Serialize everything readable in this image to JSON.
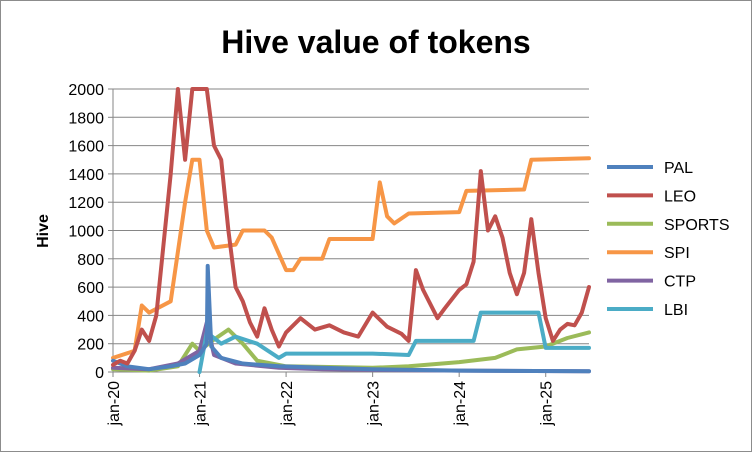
{
  "chart_data": {
    "type": "line",
    "title": "Hive value of tokens",
    "ylabel": "Hive",
    "xlabel": "",
    "ylim": [
      0,
      2000
    ],
    "yticks": [
      0,
      200,
      400,
      600,
      800,
      1000,
      1200,
      1400,
      1600,
      1800,
      2000
    ],
    "xlim": [
      "2020-01",
      "2025-07"
    ],
    "xticks": [
      {
        "date": "2020-01",
        "label": "jan-20"
      },
      {
        "date": "2021-01",
        "label": "jan-21"
      },
      {
        "date": "2022-01",
        "label": "jan-22"
      },
      {
        "date": "2023-01",
        "label": "jan-23"
      },
      {
        "date": "2024-01",
        "label": "jan-24"
      },
      {
        "date": "2025-01",
        "label": "jan-25"
      }
    ],
    "grid": "horizontal",
    "legend": "right",
    "series": [
      {
        "name": "PAL",
        "color": "#4f81bd",
        "points": [
          [
            "2020-01",
            80
          ],
          [
            "2020-03",
            40
          ],
          [
            "2020-06",
            20
          ],
          [
            "2020-09",
            40
          ],
          [
            "2020-11",
            60
          ],
          [
            "2021-01",
            120
          ],
          [
            "2021-02",
            200
          ],
          [
            "2021-02-05",
            750
          ],
          [
            "2021-02-20",
            180
          ],
          [
            "2021-04",
            100
          ],
          [
            "2021-07",
            60
          ],
          [
            "2021-12",
            40
          ],
          [
            "2022-06",
            30
          ],
          [
            "2023-01",
            20
          ],
          [
            "2024-01",
            10
          ],
          [
            "2025-07",
            5
          ]
        ]
      },
      {
        "name": "LEO",
        "color": "#c0504d",
        "points": [
          [
            "2020-01",
            50
          ],
          [
            "2020-02",
            80
          ],
          [
            "2020-03",
            60
          ],
          [
            "2020-04",
            150
          ],
          [
            "2020-05",
            300
          ],
          [
            "2020-06",
            220
          ],
          [
            "2020-07",
            400
          ],
          [
            "2020-08",
            900
          ],
          [
            "2020-09",
            1400
          ],
          [
            "2020-10",
            2000
          ],
          [
            "2020-11",
            1500
          ],
          [
            "2020-12",
            2000
          ],
          [
            "2021-01",
            2000
          ],
          [
            "2021-02",
            2000
          ],
          [
            "2021-03",
            1600
          ],
          [
            "2021-04",
            1500
          ],
          [
            "2021-05",
            1000
          ],
          [
            "2021-06",
            600
          ],
          [
            "2021-07",
            500
          ],
          [
            "2021-08",
            350
          ],
          [
            "2021-09",
            250
          ],
          [
            "2021-10",
            450
          ],
          [
            "2021-11",
            300
          ],
          [
            "2021-12",
            180
          ],
          [
            "2022-01",
            280
          ],
          [
            "2022-03",
            380
          ],
          [
            "2022-05",
            300
          ],
          [
            "2022-07",
            330
          ],
          [
            "2022-09",
            280
          ],
          [
            "2022-11",
            250
          ],
          [
            "2023-01",
            420
          ],
          [
            "2023-03",
            320
          ],
          [
            "2023-05",
            270
          ],
          [
            "2023-06",
            220
          ],
          [
            "2023-07",
            720
          ],
          [
            "2023-08",
            580
          ],
          [
            "2023-10",
            380
          ],
          [
            "2023-11",
            450
          ],
          [
            "2024-01",
            580
          ],
          [
            "2024-02",
            620
          ],
          [
            "2024-03",
            780
          ],
          [
            "2024-04",
            1420
          ],
          [
            "2024-05",
            1000
          ],
          [
            "2024-06",
            1100
          ],
          [
            "2024-07",
            950
          ],
          [
            "2024-08",
            700
          ],
          [
            "2024-09",
            550
          ],
          [
            "2024-10",
            700
          ],
          [
            "2024-11",
            1080
          ],
          [
            "2024-12",
            700
          ],
          [
            "2025-01",
            380
          ],
          [
            "2025-02",
            220
          ],
          [
            "2025-03",
            300
          ],
          [
            "2025-04",
            340
          ],
          [
            "2025-05",
            330
          ],
          [
            "2025-06",
            420
          ],
          [
            "2025-07",
            600
          ]
        ]
      },
      {
        "name": "SPORTS",
        "color": "#9bbb59",
        "points": [
          [
            "2020-01",
            20
          ],
          [
            "2020-06",
            10
          ],
          [
            "2020-10",
            40
          ],
          [
            "2020-12",
            200
          ],
          [
            "2021-01",
            150
          ],
          [
            "2021-03",
            230
          ],
          [
            "2021-05",
            300
          ],
          [
            "2021-07",
            200
          ],
          [
            "2021-09",
            80
          ],
          [
            "2022-01",
            40
          ],
          [
            "2023-01",
            30
          ],
          [
            "2023-06",
            40
          ],
          [
            "2024-01",
            70
          ],
          [
            "2024-06",
            100
          ],
          [
            "2024-09",
            160
          ],
          [
            "2025-01",
            180
          ],
          [
            "2025-04",
            240
          ],
          [
            "2025-07",
            280
          ]
        ]
      },
      {
        "name": "SPI",
        "color": "#f79646",
        "points": [
          [
            "2020-01",
            100
          ],
          [
            "2020-04",
            150
          ],
          [
            "2020-05",
            470
          ],
          [
            "2020-06",
            420
          ],
          [
            "2020-09",
            500
          ],
          [
            "2020-11",
            1200
          ],
          [
            "2020-12",
            1500
          ],
          [
            "2021-01",
            1500
          ],
          [
            "2021-02",
            1000
          ],
          [
            "2021-03",
            880
          ],
          [
            "2021-06",
            900
          ],
          [
            "2021-07",
            1000
          ],
          [
            "2021-10",
            1000
          ],
          [
            "2021-11",
            950
          ],
          [
            "2022-01",
            720
          ],
          [
            "2022-02",
            720
          ],
          [
            "2022-03",
            800
          ],
          [
            "2022-06",
            800
          ],
          [
            "2022-07",
            940
          ],
          [
            "2023-01",
            940
          ],
          [
            "2023-02",
            1340
          ],
          [
            "2023-03",
            1100
          ],
          [
            "2023-04",
            1050
          ],
          [
            "2023-06",
            1120
          ],
          [
            "2024-01",
            1130
          ],
          [
            "2024-02",
            1280
          ],
          [
            "2024-10",
            1290
          ],
          [
            "2024-11",
            1500
          ],
          [
            "2025-07",
            1510
          ]
        ]
      },
      {
        "name": "CTP",
        "color": "#8064a2",
        "points": [
          [
            "2020-01",
            30
          ],
          [
            "2020-06",
            20
          ],
          [
            "2020-10",
            60
          ],
          [
            "2021-01",
            150
          ],
          [
            "2021-02",
            350
          ],
          [
            "2021-03",
            120
          ],
          [
            "2021-06",
            60
          ],
          [
            "2021-12",
            30
          ],
          [
            "2022-06",
            20
          ],
          [
            "2023-01",
            15
          ],
          [
            "2024-01",
            10
          ],
          [
            "2025-07",
            5
          ]
        ]
      },
      {
        "name": "LBI",
        "color": "#4bacc6",
        "points": [
          [
            "2021-01",
            0
          ],
          [
            "2021-02",
            280
          ],
          [
            "2021-04",
            200
          ],
          [
            "2021-06",
            250
          ],
          [
            "2021-09",
            200
          ],
          [
            "2021-12",
            100
          ],
          [
            "2022-01",
            130
          ],
          [
            "2022-12",
            130
          ],
          [
            "2023-01",
            130
          ],
          [
            "2023-06",
            120
          ],
          [
            "2023-07",
            220
          ],
          [
            "2024-03",
            220
          ],
          [
            "2024-04",
            420
          ],
          [
            "2024-12",
            420
          ],
          [
            "2025-01",
            170
          ],
          [
            "2025-07",
            170
          ]
        ]
      }
    ]
  }
}
